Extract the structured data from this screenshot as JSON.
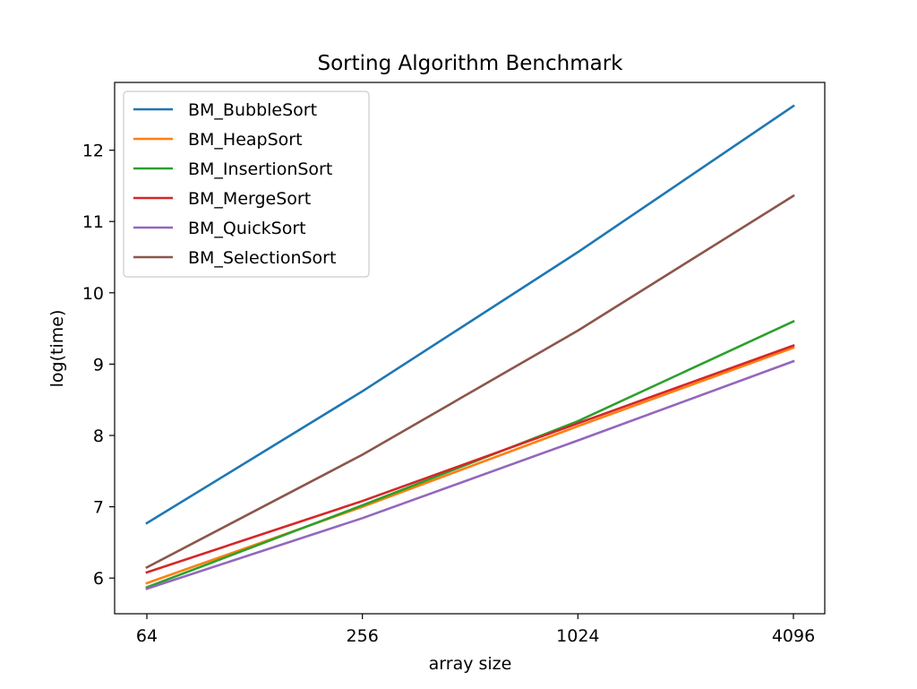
{
  "chart_data": {
    "type": "line",
    "title": "Sorting Algorithm Benchmark",
    "xlabel": "array size",
    "ylabel": "log(time)",
    "x": [
      "64",
      "256",
      "1024",
      "4096"
    ],
    "xscale": "log2",
    "ylim": [
      5.5,
      12.95
    ],
    "yticks": [
      6,
      7,
      8,
      9,
      10,
      11,
      12
    ],
    "grid": false,
    "legend_position": "upper-left",
    "series": [
      {
        "name": "BM_BubbleSort",
        "color": "#1f77b4",
        "values": [
          6.77,
          8.62,
          10.57,
          12.62
        ]
      },
      {
        "name": "BM_HeapSort",
        "color": "#ff7f0e",
        "values": [
          5.93,
          7.0,
          8.13,
          9.23
        ]
      },
      {
        "name": "BM_InsertionSort",
        "color": "#2ca02c",
        "values": [
          5.87,
          7.02,
          8.2,
          9.6
        ]
      },
      {
        "name": "BM_MergeSort",
        "color": "#d62728",
        "values": [
          6.08,
          7.08,
          8.17,
          9.26
        ]
      },
      {
        "name": "BM_QuickSort",
        "color": "#9467bd",
        "values": [
          5.85,
          6.84,
          7.93,
          9.04
        ]
      },
      {
        "name": "BM_SelectionSort",
        "color": "#8c564b",
        "values": [
          6.15,
          7.73,
          9.47,
          11.36
        ]
      }
    ]
  }
}
